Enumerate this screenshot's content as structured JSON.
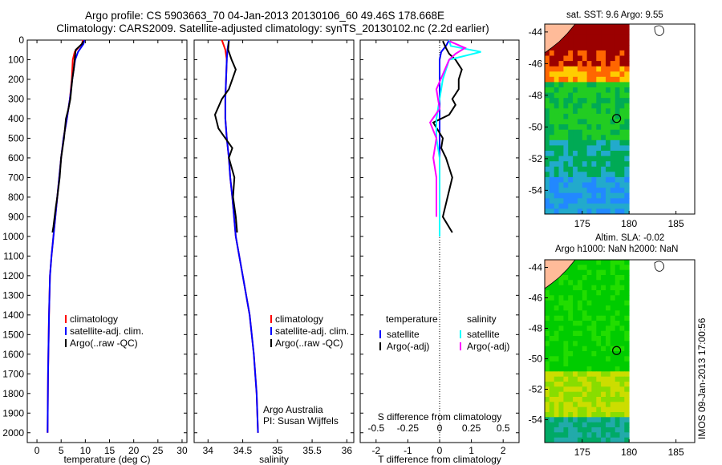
{
  "titles": {
    "line1": "Argo profile: CS 5903663_70 04-Jan-2013 20130106_60 49.46S 178.668E",
    "line2": "Climatology: CARS2009. Satellite-adjusted climatology: synTS_20130102.nc (2.2d earlier)"
  },
  "map_labels": {
    "sst": "sat. SST: 9.6 Argo: 9.55",
    "sla_line1": "Altim. SLA: -0.02",
    "sla_line2": "Argo h1000: NaN h2000: NaN"
  },
  "stamp": "IMOS 09-Jan-2013 17:00:56",
  "colors": {
    "climatology": "#ff0000",
    "satellite": "#0000ff",
    "argo": "#000000",
    "s_satellite": "#00ffff",
    "s_argo": "#ff00ff",
    "sst_map": [
      "#9b0000",
      "#ff6600",
      "#ffcc00",
      "#22cc22",
      "#00aa55",
      "#22aacc",
      "#2288ff"
    ],
    "sla_map": [
      "#00cc00",
      "#22dd00",
      "#88dd00",
      "#ccdd00",
      "#00aa66",
      "#22aaaa"
    ],
    "land": "#ffbb99"
  },
  "chart_data": [
    {
      "type": "line",
      "xlabel": "temperature (deg C)",
      "ylabel": "",
      "xlim": [
        -2,
        31
      ],
      "ylim": [
        0,
        2050
      ],
      "y_reversed": true,
      "xticks": [
        0,
        5,
        10,
        15,
        20,
        25,
        30
      ],
      "yticks": [
        0,
        100,
        200,
        300,
        400,
        500,
        600,
        700,
        800,
        900,
        1000,
        1100,
        1200,
        1300,
        1400,
        1500,
        1600,
        1700,
        1800,
        1900,
        2000
      ],
      "legend": {
        "position": "lower-right",
        "entries": [
          "climatology",
          "satellite-adj. clim.",
          "Argo(..raw -QC)"
        ]
      },
      "series": [
        {
          "name": "climatology",
          "color": "#ff0000",
          "x": [
            9.5,
            9.3,
            7.8,
            7.4,
            7.2,
            6.8,
            6.2,
            5.5,
            5.0,
            4.6,
            4.2,
            3.8,
            3.4,
            3.0,
            2.7,
            2.5,
            2.3,
            2.2
          ],
          "y": [
            0,
            20,
            60,
            100,
            200,
            300,
            400,
            500,
            600,
            700,
            800,
            900,
            1000,
            1100,
            1200,
            1400,
            1700,
            2000
          ]
        },
        {
          "name": "satellite-adj. clim.",
          "color": "#0000ff",
          "x": [
            9.8,
            9.6,
            8.5,
            7.9,
            7.3,
            6.8,
            6.2,
            5.5,
            5.0,
            4.6,
            4.2,
            3.8,
            3.4,
            3.0,
            2.7,
            2.5,
            2.3,
            2.2
          ],
          "y": [
            0,
            20,
            60,
            100,
            200,
            300,
            400,
            500,
            600,
            700,
            800,
            900,
            1000,
            1100,
            1200,
            1400,
            1700,
            2000
          ]
        },
        {
          "name": "Argo(..raw -QC)",
          "color": "#000000",
          "x": [
            9.6,
            9.3,
            8.0,
            7.8,
            7.6,
            7.3,
            6.9,
            6.5,
            6.0,
            5.6,
            5.0,
            4.7,
            4.2,
            3.9,
            3.4,
            3.2
          ],
          "y": [
            5,
            20,
            50,
            100,
            150,
            200,
            300,
            350,
            400,
            500,
            600,
            700,
            800,
            850,
            950,
            980
          ]
        }
      ]
    },
    {
      "type": "line",
      "xlabel": "salinity",
      "ylabel": "",
      "xlim": [
        33.8,
        36.1
      ],
      "ylim": [
        0,
        2050
      ],
      "y_reversed": true,
      "xticks": [
        34,
        34.5,
        35,
        35.5,
        36
      ],
      "legend": {
        "position": "lower-right",
        "entries": [
          "climatology",
          "satellite-adj. clim.",
          "Argo(..raw -QC)"
        ]
      },
      "annotation": [
        "Argo Australia",
        "PI: Susan Wijffels"
      ],
      "series": [
        {
          "name": "climatology",
          "color": "#ff0000",
          "x": [
            34.2,
            34.25,
            34.27,
            34.26,
            34.25,
            34.25,
            34.27,
            34.3,
            34.32,
            34.35,
            34.4,
            34.5,
            34.6,
            34.66,
            34.7,
            34.72
          ],
          "y": [
            0,
            50,
            100,
            200,
            300,
            400,
            500,
            600,
            700,
            800,
            1000,
            1200,
            1400,
            1600,
            1800,
            2000
          ]
        },
        {
          "name": "satellite-adj. clim.",
          "color": "#0000ff",
          "x": [
            34.3,
            34.28,
            34.27,
            34.26,
            34.25,
            34.25,
            34.27,
            34.3,
            34.32,
            34.35,
            34.4,
            34.5,
            34.6,
            34.66,
            34.7,
            34.72
          ],
          "y": [
            0,
            50,
            100,
            200,
            300,
            400,
            500,
            600,
            700,
            800,
            1000,
            1200,
            1400,
            1600,
            1800,
            2000
          ]
        },
        {
          "name": "Argo(..raw -QC)",
          "color": "#000000",
          "x": [
            34.3,
            34.29,
            34.34,
            34.4,
            34.35,
            34.3,
            34.2,
            34.1,
            34.15,
            34.25,
            34.35,
            34.3,
            34.38,
            34.36,
            34.4,
            34.42
          ],
          "y": [
            5,
            50,
            100,
            150,
            200,
            250,
            300,
            380,
            450,
            500,
            550,
            600,
            700,
            800,
            900,
            980
          ]
        }
      ]
    },
    {
      "type": "line",
      "xlabel": "T difference from climatology",
      "xlabel_top": "S difference from climatology",
      "ylabel": "",
      "xlim": [
        -2.5,
        2.5
      ],
      "ylim": [
        0,
        2050
      ],
      "y_reversed": true,
      "xticks": [
        -2,
        -1,
        0,
        1,
        2
      ],
      "xticks_top": [
        "-0.5",
        "-0.25",
        "0",
        "0.25",
        "0.5"
      ],
      "legend": {
        "position": "center",
        "headings": [
          "temperature",
          "salinity"
        ],
        "entries": [
          "satellite",
          "Argo(-adj)",
          "satellite",
          "Argo(-adj)"
        ]
      },
      "series": [
        {
          "name": "satellite",
          "color": "#0000ff",
          "x": [
            0.3,
            0.2,
            0.05,
            0.0,
            0.0,
            0.0,
            0.0,
            0.0,
            0.0,
            0.0,
            0.0
          ],
          "y": [
            0,
            30,
            60,
            100,
            200,
            400,
            600,
            700,
            800,
            900,
            1000
          ]
        },
        {
          "name": "Argo(-adj)",
          "color": "#000000",
          "x": [
            0.1,
            0.2,
            0.3,
            0.5,
            0.7,
            0.6,
            0.6,
            0.4,
            0.5,
            0.3,
            -0.2,
            0.1,
            0.05,
            0.2,
            0.4,
            0.25,
            0.1,
            0.4
          ],
          "y": [
            5,
            40,
            70,
            100,
            150,
            200,
            250,
            300,
            330,
            380,
            420,
            500,
            550,
            600,
            700,
            800,
            900,
            980
          ]
        },
        {
          "name": "satellite",
          "color": "#00ffff",
          "x": [
            0.3,
            0.35,
            1.3,
            0.3,
            0.1,
            0.0,
            -0.1,
            -0.1,
            0.0,
            0.0,
            0.0,
            0.0
          ],
          "y": [
            0,
            30,
            60,
            100,
            200,
            300,
            400,
            500,
            600,
            700,
            800,
            1000
          ]
        },
        {
          "name": "Argo(-adj)",
          "color": "#ff00ff",
          "x": [
            0.3,
            0.8,
            0.5,
            0.3,
            -0.1,
            0.0,
            -0.3,
            -0.1,
            -0.2,
            -0.1,
            -0.1
          ],
          "y": [
            5,
            40,
            70,
            100,
            250,
            350,
            420,
            500,
            600,
            700,
            900
          ]
        }
      ]
    },
    {
      "type": "heatmap",
      "title": "sat. SST: 9.6 Argo: 9.55",
      "xlim": [
        171,
        187
      ],
      "ylim": [
        -55.5,
        -43.5
      ],
      "xticks": [
        175,
        180,
        185
      ],
      "yticks": [
        -44,
        -46,
        -48,
        -50,
        -52,
        -54
      ],
      "marker": {
        "lon": 178.668,
        "lat": -49.46
      }
    },
    {
      "type": "heatmap",
      "title": "Altim. SLA: -0.02",
      "xlim": [
        171,
        187
      ],
      "ylim": [
        -55.5,
        -43.5
      ],
      "xticks": [
        175,
        180,
        185
      ],
      "yticks": [
        -44,
        -46,
        -48,
        -50,
        -52,
        -54
      ],
      "marker": {
        "lon": 178.668,
        "lat": -49.46
      }
    }
  ]
}
